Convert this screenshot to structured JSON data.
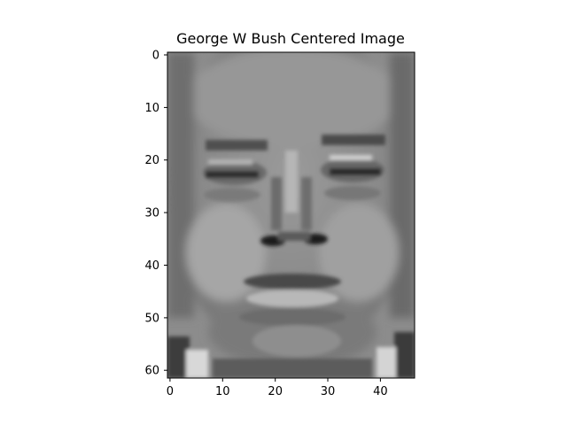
{
  "title": "George W Bush Centered Image",
  "image": {
    "description_visible": "grayscale low-resolution face image",
    "rows": 62,
    "cols": 47
  },
  "axes": {
    "x_ticks": [
      "0",
      "10",
      "20",
      "30",
      "40"
    ],
    "y_ticks": [
      "0",
      "10",
      "20",
      "30",
      "40",
      "50",
      "60"
    ]
  },
  "colors": {
    "background": "#ffffff",
    "axis": "#000000"
  }
}
